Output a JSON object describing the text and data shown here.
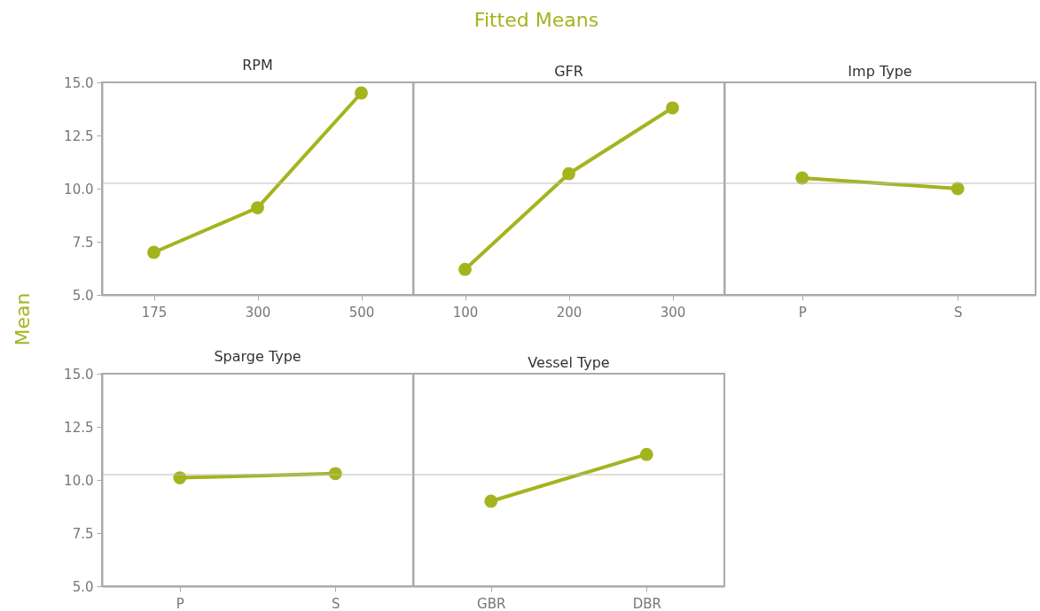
{
  "chart_data": [
    {
      "type": "line",
      "title": "RPM",
      "ylabel": "Mean",
      "annotations": [
        "Fitted Means"
      ],
      "categories": [
        "175",
        "300",
        "500"
      ],
      "values": [
        7.0,
        9.1,
        14.5
      ],
      "color": "#a4b41f",
      "marker": "circle",
      "ylim": [
        5,
        15
      ],
      "yticks": [
        {
          "value": 5,
          "label": "5.0"
        },
        {
          "value": 7.5,
          "label": "7.5"
        },
        {
          "value": 10,
          "label": "10.0"
        },
        {
          "value": 12.5,
          "label": "12.5"
        },
        {
          "value": 15,
          "label": "15.0"
        }
      ],
      "ref_lines": [
        {
          "axis": "y",
          "value": 10.25,
          "color": "#bbbbbb"
        }
      ]
    },
    {
      "type": "line",
      "title": "GFR",
      "categories": [
        "100",
        "200",
        "300"
      ],
      "values": [
        6.2,
        10.7,
        13.8
      ],
      "color": "#a4b41f",
      "marker": "circle",
      "ylim": [
        5,
        15
      ],
      "tick_labels": "x",
      "ref_lines": [
        {
          "axis": "y",
          "value": 10.25,
          "color": "#bbbbbb"
        }
      ]
    },
    {
      "type": "line",
      "title": "Imp Type",
      "categories": [
        "P",
        "S"
      ],
      "values": [
        10.5,
        10.0
      ],
      "color": "#a4b41f",
      "marker": "circle",
      "ylim": [
        5,
        15
      ],
      "tick_labels": "x",
      "ref_lines": [
        {
          "axis": "y",
          "value": 10.25,
          "color": "#bbbbbb"
        }
      ]
    },
    {
      "type": "line",
      "title": "Sparge Type",
      "categories": [
        "P",
        "S"
      ],
      "values": [
        10.1,
        10.3
      ],
      "color": "#a4b41f",
      "marker": "circle",
      "ylim": [
        5,
        15
      ],
      "yticks": [
        {
          "value": 5,
          "label": "5.0"
        },
        {
          "value": 7.5,
          "label": "7.5"
        },
        {
          "value": 10,
          "label": "10.0"
        },
        {
          "value": 12.5,
          "label": "12.5"
        },
        {
          "value": 15,
          "label": "15.0"
        }
      ],
      "ref_lines": [
        {
          "axis": "y",
          "value": 10.25,
          "color": "#bbbbbb"
        }
      ]
    },
    {
      "type": "line",
      "title": "Vessel Type",
      "categories": [
        "GBR",
        "DBR"
      ],
      "values": [
        9.0,
        11.2
      ],
      "color": "#a4b41f",
      "marker": "circle",
      "ylim": [
        5,
        15
      ],
      "tick_labels": "x",
      "ref_lines": [
        {
          "axis": "y",
          "value": 10.25,
          "color": "#bbbbbb"
        }
      ]
    }
  ]
}
